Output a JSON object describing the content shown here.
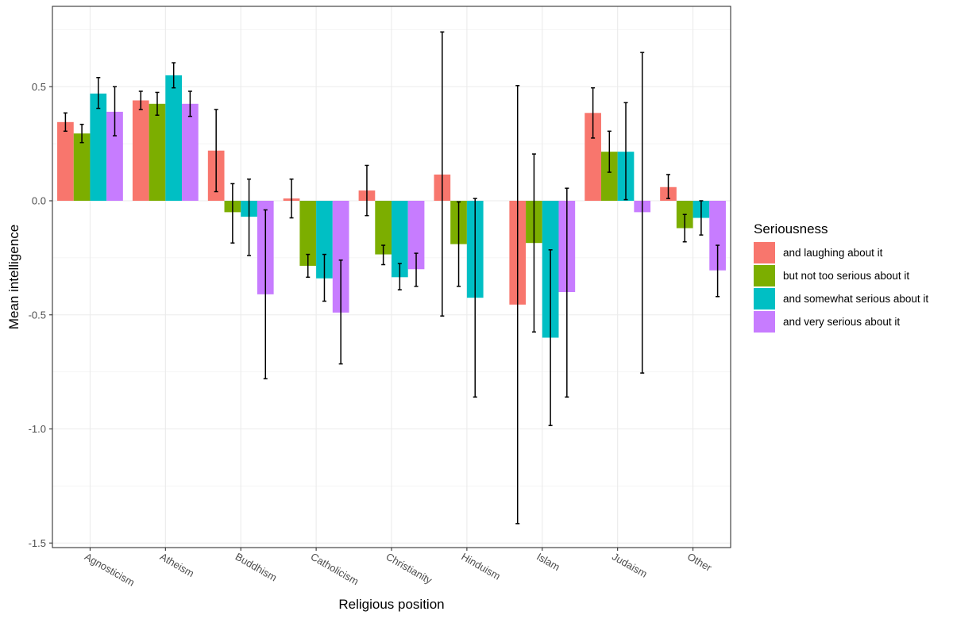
{
  "chart_data": {
    "type": "bar",
    "title": "",
    "xlabel": "Religious position",
    "ylabel": "Mean intelligence",
    "ylim": [
      -1.5,
      0.75
    ],
    "yticks": [
      0.5,
      0.0,
      -0.5,
      -1.0,
      -1.5
    ],
    "ytick_labels": [
      "0.5",
      "0.0",
      "-0.5",
      "-1.0",
      "-1.5"
    ],
    "grid": true,
    "legend_position": "right",
    "legend_title": "Seriousness",
    "categories": [
      "Agnosticism",
      "Atheism",
      "Buddhism",
      "Catholicism",
      "Christianity",
      "Hinduism",
      "Islam",
      "Judaism",
      "Other"
    ],
    "series": [
      {
        "name": "and laughing about it",
        "color": "#F8766D",
        "values": [
          0.345,
          0.44,
          0.22,
          0.01,
          0.045,
          0.115,
          -0.455,
          0.385,
          0.06
        ],
        "err_low": [
          0.305,
          0.4,
          0.04,
          -0.075,
          -0.065,
          -0.505,
          -1.415,
          0.275,
          0.01
        ],
        "err_high": [
          0.385,
          0.48,
          0.4,
          0.095,
          0.155,
          0.74,
          0.505,
          0.495,
          0.115
        ]
      },
      {
        "name": "but not too serious about it",
        "color": "#7CAE00",
        "values": [
          0.295,
          0.425,
          -0.05,
          -0.285,
          -0.235,
          -0.19,
          -0.185,
          0.215,
          -0.12
        ],
        "err_low": [
          0.255,
          0.375,
          -0.185,
          -0.335,
          -0.28,
          -0.375,
          -0.575,
          0.125,
          -0.18
        ],
        "err_high": [
          0.335,
          0.475,
          0.075,
          -0.235,
          -0.195,
          -0.005,
          0.205,
          0.305,
          -0.06
        ]
      },
      {
        "name": "and somewhat serious about it",
        "color": "#00BFC4",
        "values": [
          0.47,
          0.55,
          -0.07,
          -0.34,
          -0.335,
          -0.425,
          -0.6,
          0.215,
          -0.075
        ],
        "err_low": [
          0.405,
          0.495,
          -0.24,
          -0.44,
          -0.39,
          -0.86,
          -0.985,
          0.005,
          -0.15
        ],
        "err_high": [
          0.54,
          0.605,
          0.095,
          -0.235,
          -0.275,
          0.01,
          -0.215,
          0.43,
          0.0
        ]
      },
      {
        "name": "and very serious about it",
        "color": "#C77CFF",
        "values": [
          0.39,
          0.425,
          -0.41,
          -0.49,
          -0.3,
          null,
          -0.4,
          -0.05,
          -0.305
        ],
        "err_low": [
          0.285,
          0.37,
          -0.78,
          -0.715,
          -0.375,
          null,
          -0.86,
          -0.755,
          -0.42
        ],
        "err_high": [
          0.5,
          0.48,
          -0.04,
          -0.26,
          -0.23,
          null,
          0.055,
          0.65,
          -0.195
        ]
      }
    ]
  }
}
